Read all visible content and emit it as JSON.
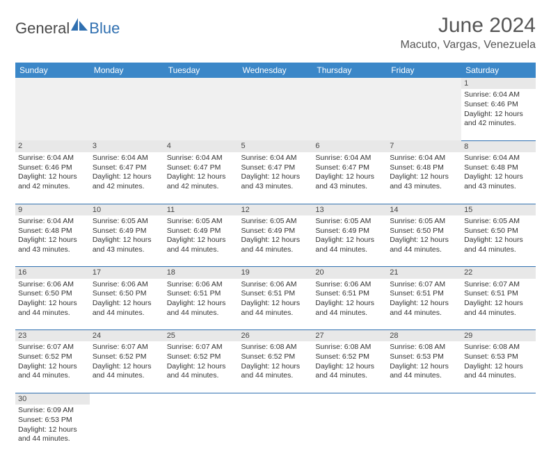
{
  "logo": {
    "general": "General",
    "blue": "Blue"
  },
  "title": "June 2024",
  "location": "Macuto, Vargas, Venezuela",
  "colors": {
    "header_bg": "#3b87c8",
    "border": "#2f6fb0",
    "daynum_bg": "#e8e8e8",
    "logo_blue": "#2f6fb0"
  },
  "weekdays": [
    "Sunday",
    "Monday",
    "Tuesday",
    "Wednesday",
    "Thursday",
    "Friday",
    "Saturday"
  ],
  "weeks": [
    {
      "nums": [
        "",
        "",
        "",
        "",
        "",
        "",
        "1"
      ],
      "cells": [
        null,
        null,
        null,
        null,
        null,
        null,
        {
          "sunrise": "Sunrise: 6:04 AM",
          "sunset": "Sunset: 6:46 PM",
          "day1": "Daylight: 12 hours",
          "day2": "and 42 minutes."
        }
      ]
    },
    {
      "nums": [
        "2",
        "3",
        "4",
        "5",
        "6",
        "7",
        "8"
      ],
      "cells": [
        {
          "sunrise": "Sunrise: 6:04 AM",
          "sunset": "Sunset: 6:46 PM",
          "day1": "Daylight: 12 hours",
          "day2": "and 42 minutes."
        },
        {
          "sunrise": "Sunrise: 6:04 AM",
          "sunset": "Sunset: 6:47 PM",
          "day1": "Daylight: 12 hours",
          "day2": "and 42 minutes."
        },
        {
          "sunrise": "Sunrise: 6:04 AM",
          "sunset": "Sunset: 6:47 PM",
          "day1": "Daylight: 12 hours",
          "day2": "and 42 minutes."
        },
        {
          "sunrise": "Sunrise: 6:04 AM",
          "sunset": "Sunset: 6:47 PM",
          "day1": "Daylight: 12 hours",
          "day2": "and 43 minutes."
        },
        {
          "sunrise": "Sunrise: 6:04 AM",
          "sunset": "Sunset: 6:47 PM",
          "day1": "Daylight: 12 hours",
          "day2": "and 43 minutes."
        },
        {
          "sunrise": "Sunrise: 6:04 AM",
          "sunset": "Sunset: 6:48 PM",
          "day1": "Daylight: 12 hours",
          "day2": "and 43 minutes."
        },
        {
          "sunrise": "Sunrise: 6:04 AM",
          "sunset": "Sunset: 6:48 PM",
          "day1": "Daylight: 12 hours",
          "day2": "and 43 minutes."
        }
      ]
    },
    {
      "nums": [
        "9",
        "10",
        "11",
        "12",
        "13",
        "14",
        "15"
      ],
      "cells": [
        {
          "sunrise": "Sunrise: 6:04 AM",
          "sunset": "Sunset: 6:48 PM",
          "day1": "Daylight: 12 hours",
          "day2": "and 43 minutes."
        },
        {
          "sunrise": "Sunrise: 6:05 AM",
          "sunset": "Sunset: 6:49 PM",
          "day1": "Daylight: 12 hours",
          "day2": "and 43 minutes."
        },
        {
          "sunrise": "Sunrise: 6:05 AM",
          "sunset": "Sunset: 6:49 PM",
          "day1": "Daylight: 12 hours",
          "day2": "and 44 minutes."
        },
        {
          "sunrise": "Sunrise: 6:05 AM",
          "sunset": "Sunset: 6:49 PM",
          "day1": "Daylight: 12 hours",
          "day2": "and 44 minutes."
        },
        {
          "sunrise": "Sunrise: 6:05 AM",
          "sunset": "Sunset: 6:49 PM",
          "day1": "Daylight: 12 hours",
          "day2": "and 44 minutes."
        },
        {
          "sunrise": "Sunrise: 6:05 AM",
          "sunset": "Sunset: 6:50 PM",
          "day1": "Daylight: 12 hours",
          "day2": "and 44 minutes."
        },
        {
          "sunrise": "Sunrise: 6:05 AM",
          "sunset": "Sunset: 6:50 PM",
          "day1": "Daylight: 12 hours",
          "day2": "and 44 minutes."
        }
      ]
    },
    {
      "nums": [
        "16",
        "17",
        "18",
        "19",
        "20",
        "21",
        "22"
      ],
      "cells": [
        {
          "sunrise": "Sunrise: 6:06 AM",
          "sunset": "Sunset: 6:50 PM",
          "day1": "Daylight: 12 hours",
          "day2": "and 44 minutes."
        },
        {
          "sunrise": "Sunrise: 6:06 AM",
          "sunset": "Sunset: 6:50 PM",
          "day1": "Daylight: 12 hours",
          "day2": "and 44 minutes."
        },
        {
          "sunrise": "Sunrise: 6:06 AM",
          "sunset": "Sunset: 6:51 PM",
          "day1": "Daylight: 12 hours",
          "day2": "and 44 minutes."
        },
        {
          "sunrise": "Sunrise: 6:06 AM",
          "sunset": "Sunset: 6:51 PM",
          "day1": "Daylight: 12 hours",
          "day2": "and 44 minutes."
        },
        {
          "sunrise": "Sunrise: 6:06 AM",
          "sunset": "Sunset: 6:51 PM",
          "day1": "Daylight: 12 hours",
          "day2": "and 44 minutes."
        },
        {
          "sunrise": "Sunrise: 6:07 AM",
          "sunset": "Sunset: 6:51 PM",
          "day1": "Daylight: 12 hours",
          "day2": "and 44 minutes."
        },
        {
          "sunrise": "Sunrise: 6:07 AM",
          "sunset": "Sunset: 6:51 PM",
          "day1": "Daylight: 12 hours",
          "day2": "and 44 minutes."
        }
      ]
    },
    {
      "nums": [
        "23",
        "24",
        "25",
        "26",
        "27",
        "28",
        "29"
      ],
      "cells": [
        {
          "sunrise": "Sunrise: 6:07 AM",
          "sunset": "Sunset: 6:52 PM",
          "day1": "Daylight: 12 hours",
          "day2": "and 44 minutes."
        },
        {
          "sunrise": "Sunrise: 6:07 AM",
          "sunset": "Sunset: 6:52 PM",
          "day1": "Daylight: 12 hours",
          "day2": "and 44 minutes."
        },
        {
          "sunrise": "Sunrise: 6:07 AM",
          "sunset": "Sunset: 6:52 PM",
          "day1": "Daylight: 12 hours",
          "day2": "and 44 minutes."
        },
        {
          "sunrise": "Sunrise: 6:08 AM",
          "sunset": "Sunset: 6:52 PM",
          "day1": "Daylight: 12 hours",
          "day2": "and 44 minutes."
        },
        {
          "sunrise": "Sunrise: 6:08 AM",
          "sunset": "Sunset: 6:52 PM",
          "day1": "Daylight: 12 hours",
          "day2": "and 44 minutes."
        },
        {
          "sunrise": "Sunrise: 6:08 AM",
          "sunset": "Sunset: 6:53 PM",
          "day1": "Daylight: 12 hours",
          "day2": "and 44 minutes."
        },
        {
          "sunrise": "Sunrise: 6:08 AM",
          "sunset": "Sunset: 6:53 PM",
          "day1": "Daylight: 12 hours",
          "day2": "and 44 minutes."
        }
      ]
    },
    {
      "nums": [
        "30",
        "",
        "",
        "",
        "",
        "",
        ""
      ],
      "cells": [
        {
          "sunrise": "Sunrise: 6:09 AM",
          "sunset": "Sunset: 6:53 PM",
          "day1": "Daylight: 12 hours",
          "day2": "and 44 minutes."
        },
        null,
        null,
        null,
        null,
        null,
        null
      ]
    }
  ]
}
